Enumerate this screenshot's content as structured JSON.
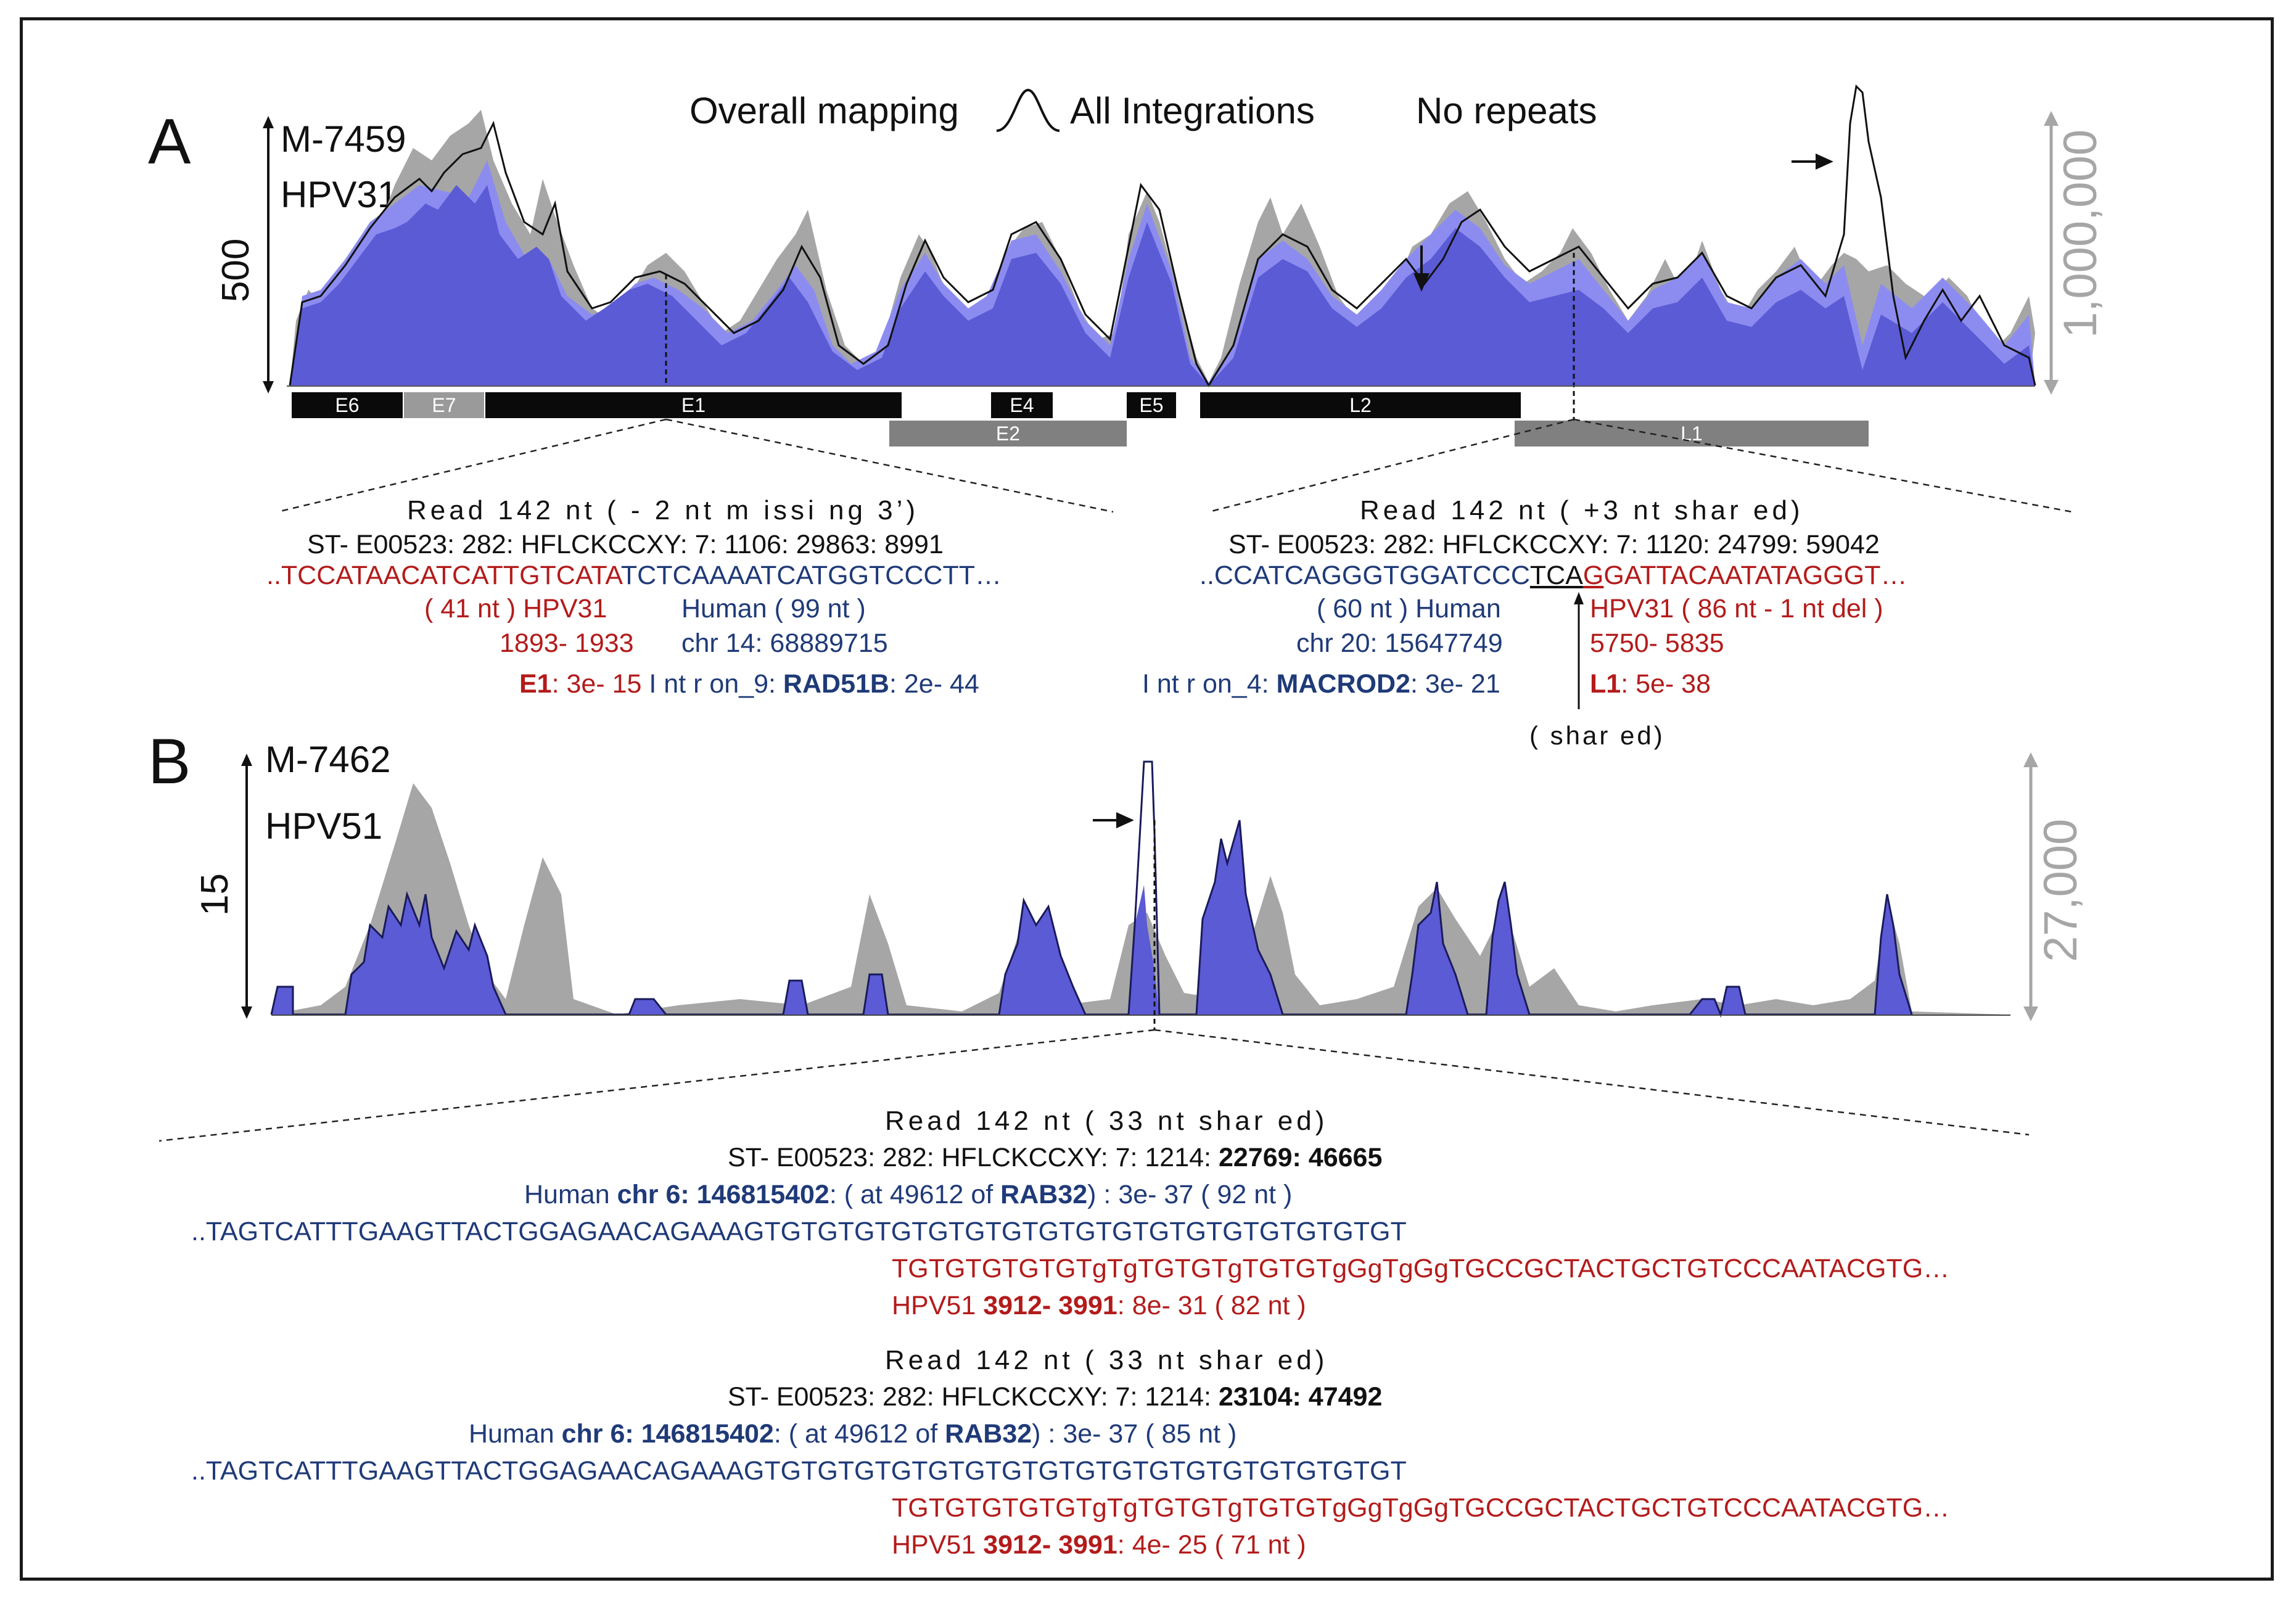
{
  "panel_a": {
    "letter": "A",
    "sample": "M-7459",
    "virus": "HPV31",
    "y_left": "500",
    "y_right": "1,000,000",
    "legend": {
      "overall": "Overall mapping",
      "all_integrations": "All Integrations",
      "no_repeats": "No repeats"
    },
    "genes_top": [
      {
        "label": "E6",
        "shade": "dark"
      },
      {
        "label": "E7",
        "shade": "light"
      },
      {
        "label": "E1",
        "shade": "dark"
      },
      {
        "label": "E4",
        "shade": "dark"
      },
      {
        "label": "E5",
        "shade": "dark"
      },
      {
        "label": "L2",
        "shade": "dark"
      }
    ],
    "genes_bottom": [
      {
        "label": "E2",
        "shade": "mid"
      },
      {
        "label": "L1",
        "shade": "mid"
      }
    ],
    "left_read": {
      "title": "Read  142  nt   ( - 2  nt   m issi ng  3’)",
      "id": "ST- E00523: 282: HFLCKCCXY: 7: 1106: 29863: 8991",
      "seq_hpv": "..TCCATAACATCATTGTCATA",
      "seq_human": "TCTCAAAATCATGGTCCCTT…",
      "hpv_len": "( 41  nt )   HPV31",
      "human_len": "Human  ( 99  nt )",
      "hpv_pos": "1893- 1933",
      "human_pos": "chr 14: 68889715",
      "hpv_gene": "E1",
      "hpv_e": ": 3e- 15",
      "human_intron": "I nt r on_9: ",
      "human_gene": "RAD51B",
      "human_e": ": 2e- 44"
    },
    "right_read": {
      "title": "Read  142  nt   ( +3  nt   shar ed)",
      "id": "ST- E00523: 282: HFLCKCCXY: 7: 1120: 24799: 59042",
      "seq_human": "..CCATCAGGGTGGATCCC",
      "seq_shared": "TCA",
      "seq_hpv_g": "G",
      "seq_hpv_rest": "GATTACAATATAGGGT…",
      "human_len": "( 60  nt )   Human",
      "hpv_len": "HPV31  ( 86  nt   -  1  nt   del )",
      "human_pos": "chr 20: 15647749",
      "hpv_pos": "5750- 5835",
      "human_intron": "I nt r on_4: ",
      "human_gene": "MACROD2",
      "human_e": ": 3e- 21",
      "hpv_gene": "L1",
      "hpv_e": ": 5e- 38",
      "shared_note": "( shar ed)"
    }
  },
  "panel_b": {
    "letter": "B",
    "sample": "M-7462",
    "virus": "HPV51",
    "y_left": "15",
    "y_right": "27,000",
    "reads": [
      {
        "title": "Read  142  nt   ( 33  nt   shar ed)",
        "id_prefix": "ST- E00523: 282: HFLCKCCXY: 7: 1214: ",
        "id_bold": "22769: 46665",
        "human_label": "Human  ",
        "human_chr": "chr 6: 146815402",
        "human_mid": ": ( at   49612  of   ",
        "human_gene": "RAB32",
        "human_tail": ") : 3e- 37  ( 92  nt )",
        "seq_human": "..TAGTCATTTGAAGTTACTGGAGAACAGAAAGTGTGTGTGTGTGTGTGTGTGTGTGTGTGTGTGTGT",
        "seq_hpv": "TGTGTGTGTGTgTgTGTGTgTGTGTgGgTgGgTGCCGCTACTGCTGTCCCAATACGTG…",
        "hpv_label": "HPV51  ",
        "hpv_pos": "3912- 3991",
        "hpv_tail": ": 8e- 31  ( 82  nt )"
      },
      {
        "title": "Read  142  nt   ( 33  nt   shar ed)",
        "id_prefix": "ST- E00523: 282: HFLCKCCXY: 7: 1214: ",
        "id_bold": "23104: 47492",
        "human_label": "Human  ",
        "human_chr": "chr 6: 146815402",
        "human_mid": ": ( at   49612  of   ",
        "human_gene": "RAB32",
        "human_tail": ") : 3e- 37  ( 85  nt )",
        "seq_human": "..TAGTCATTTGAAGTTACTGGAGAACAGAAAGTGTGTGTGTGTGTGTGTGTGTGTGTGTGTGTGTGT",
        "seq_hpv": "TGTGTGTGTGTgTgTGTGTgTGTGTgGgTgGgTGCCGCTACTGCTGTCCCAATACGTG…",
        "hpv_label": "HPV51  ",
        "hpv_pos": "3912- 3991",
        "hpv_tail": ": 4e- 25  ( 71  nt )"
      }
    ]
  },
  "colors": {
    "coverage": "#5b5bd6",
    "coverage_light": "#8c8cf0",
    "overall": "#a6a6a6",
    "human_text": "#1f3a78",
    "hpv_text": "#b31b1b"
  }
}
